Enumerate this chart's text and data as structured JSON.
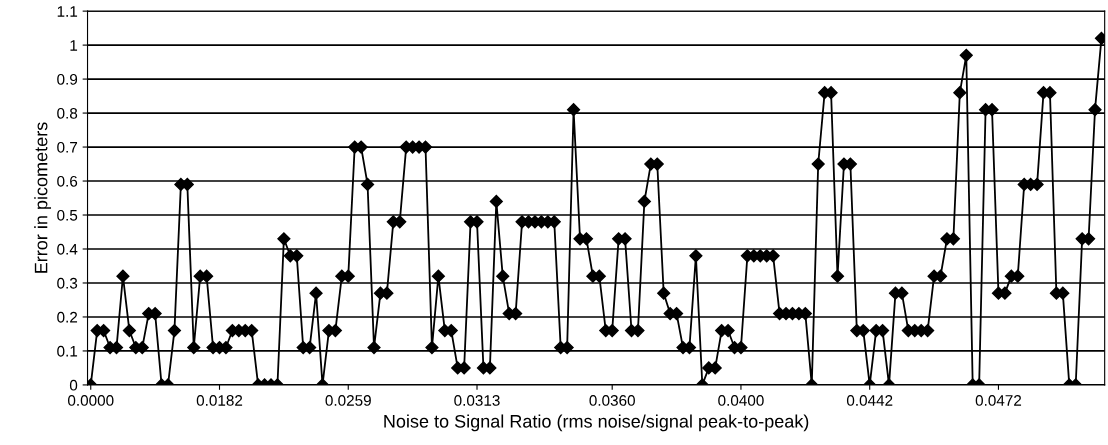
{
  "chart_data": {
    "type": "line",
    "xlabel": "Noise to Signal Ratio (rms noise/signal peak-to-peak)",
    "ylabel": "Error in picometers",
    "categories": [
      "0.0000",
      null,
      null,
      null,
      null,
      null,
      null,
      null,
      null,
      null,
      null,
      null,
      null,
      null,
      null,
      null,
      null,
      null,
      null,
      null,
      "0.0182",
      null,
      null,
      null,
      null,
      null,
      null,
      null,
      null,
      null,
      null,
      null,
      null,
      null,
      null,
      null,
      null,
      null,
      null,
      null,
      "0.0259",
      null,
      null,
      null,
      null,
      null,
      null,
      null,
      null,
      null,
      null,
      null,
      null,
      null,
      null,
      null,
      null,
      null,
      null,
      null,
      "0.0313",
      null,
      null,
      null,
      null,
      null,
      null,
      null,
      null,
      null,
      null,
      null,
      null,
      null,
      null,
      null,
      null,
      null,
      null,
      null,
      null,
      "0.0360",
      null,
      null,
      null,
      null,
      null,
      null,
      null,
      null,
      null,
      null,
      null,
      null,
      null,
      null,
      null,
      null,
      null,
      null,
      null,
      "0.0400",
      null,
      null,
      null,
      null,
      null,
      null,
      null,
      null,
      null,
      null,
      null,
      null,
      null,
      null,
      null,
      null,
      null,
      null,
      null,
      "0.0442",
      null,
      null,
      null,
      null,
      null,
      null,
      null,
      null,
      null,
      null,
      null,
      null,
      null,
      null,
      null,
      null,
      null,
      null,
      null,
      "0.0472",
      null,
      null,
      null,
      null,
      null,
      null,
      null,
      null,
      null,
      null,
      null,
      null,
      null,
      null,
      null,
      null
    ],
    "series": [
      {
        "color": "#000000",
        "values": [
          0,
          0.16,
          0.16,
          0.11,
          0.11,
          0.32,
          0.16,
          0.11,
          0.11,
          0.21,
          0.21,
          0,
          0,
          0.16,
          0.59,
          0.59,
          0.11,
          0.32,
          0.32,
          0.11,
          0.11,
          0.11,
          0.16,
          0.16,
          0.16,
          0.16,
          0,
          0,
          0,
          0,
          0.43,
          0.38,
          0.38,
          0.11,
          0.11,
          0.27,
          0,
          0.16,
          0.16,
          0.32,
          0.32,
          0.7,
          0.7,
          0.59,
          0.11,
          0.27,
          0.27,
          0.48,
          0.48,
          0.7,
          0.7,
          0.7,
          0.7,
          0.11,
          0.32,
          0.16,
          0.16,
          0.05,
          0.05,
          0.48,
          0.48,
          0.05,
          0.05,
          0.54,
          0.32,
          0.21,
          0.21,
          0.48,
          0.48,
          0.48,
          0.48,
          0.48,
          0.48,
          0.11,
          0.11,
          0.81,
          0.43,
          0.43,
          0.32,
          0.32,
          0.16,
          0.16,
          0.43,
          0.43,
          0.16,
          0.16,
          0.54,
          0.65,
          0.65,
          0.27,
          0.21,
          0.21,
          0.11,
          0.11,
          0.38,
          0,
          0.05,
          0.05,
          0.16,
          0.16,
          0.11,
          0.11,
          0.38,
          0.38,
          0.38,
          0.38,
          0.38,
          0.21,
          0.21,
          0.21,
          0.21,
          0.21,
          0,
          0.65,
          0.86,
          0.86,
          0.32,
          0.65,
          0.65,
          0.16,
          0.16,
          0,
          0.16,
          0.16,
          0,
          0.27,
          0.27,
          0.16,
          0.16,
          0.16,
          0.16,
          0.32,
          0.32,
          0.43,
          0.43,
          0.86,
          0.97,
          0,
          0,
          0.81,
          0.81,
          0.27,
          0.27,
          0.32,
          0.32,
          0.59,
          0.59,
          0.59,
          0.86,
          0.86,
          0.27,
          0.27,
          0,
          0,
          0.43,
          0.43,
          0.81,
          1.02
        ]
      }
    ],
    "ylim": [
      0,
      1.1
    ],
    "yticks": [
      0,
      0.1,
      0.2,
      0.3,
      0.4,
      0.5,
      0.6,
      0.7,
      0.8,
      0.9,
      {
        "value": 1,
        "label": "1"
      },
      1.1
    ],
    "grid": "y",
    "legend": false,
    "marker": "diamond",
    "line_style": "solid"
  }
}
